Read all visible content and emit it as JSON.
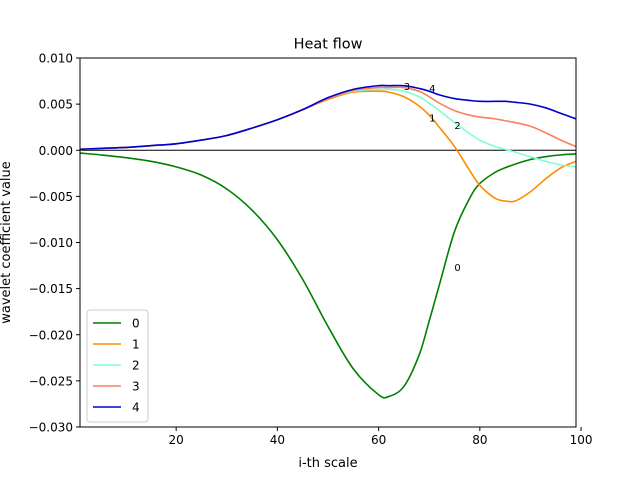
{
  "chart_data": {
    "type": "line",
    "title": "Heat flow",
    "xlabel": "i-th scale",
    "ylabel": "wavelet coefficient value",
    "xlim": [
      1,
      99
    ],
    "ylim": [
      -0.03,
      0.01
    ],
    "xticks": [
      20,
      40,
      60,
      80,
      100
    ],
    "xtick_labels": [
      "20",
      "40",
      "60",
      "80",
      "100"
    ],
    "yticks": [
      0.01,
      0.005,
      0.0,
      -0.005,
      -0.01,
      -0.015,
      -0.02,
      -0.025,
      -0.03
    ],
    "ytick_labels": [
      "0.010",
      "0.005",
      "0.000",
      "−0.005",
      "−0.010",
      "−0.015",
      "−0.020",
      "−0.025",
      "−0.030"
    ],
    "grid": false,
    "zero_line": true,
    "legend_position": "lower-left",
    "x": [
      1,
      5,
      10,
      15,
      20,
      25,
      30,
      35,
      40,
      45,
      50,
      55,
      60,
      62,
      65,
      68,
      70,
      72,
      75,
      78,
      80,
      83,
      85,
      87,
      90,
      93,
      96,
      99
    ],
    "series": [
      {
        "name": "0",
        "color": "#008000",
        "values": [
          -0.0003,
          -0.0005,
          -0.0008,
          -0.0012,
          -0.0018,
          -0.0027,
          -0.0042,
          -0.0065,
          -0.0097,
          -0.014,
          -0.0191,
          -0.0237,
          -0.0265,
          -0.0267,
          -0.0256,
          -0.0222,
          -0.0185,
          -0.0146,
          -0.0088,
          -0.0052,
          -0.0036,
          -0.0024,
          -0.0019,
          -0.0015,
          -0.001,
          -0.0007,
          -0.0005,
          -0.0004
        ]
      },
      {
        "name": "1",
        "color": "#ff8c00",
        "values": [
          0.0001,
          0.0002,
          0.0003,
          0.0005,
          0.0007,
          0.0011,
          0.0016,
          0.0024,
          0.0033,
          0.0044,
          0.0055,
          0.0063,
          0.0064,
          0.0063,
          0.0058,
          0.0048,
          0.0038,
          0.0025,
          0.0004,
          -0.0022,
          -0.0038,
          -0.0052,
          -0.0055,
          -0.0055,
          -0.0045,
          -0.0031,
          -0.0019,
          -0.0012
        ]
      },
      {
        "name": "2",
        "color": "#7fffd4",
        "values": [
          0.0001,
          0.0002,
          0.0003,
          0.0005,
          0.0007,
          0.0011,
          0.0016,
          0.0024,
          0.0033,
          0.0044,
          0.0056,
          0.0064,
          0.0066,
          0.0066,
          0.0064,
          0.0058,
          0.0051,
          0.0043,
          0.003,
          0.0018,
          0.0011,
          0.0004,
          0.0001,
          -0.0002,
          -0.0007,
          -0.0012,
          -0.0016,
          -0.0018
        ]
      },
      {
        "name": "3",
        "color": "#fa8060",
        "values": [
          0.0001,
          0.0002,
          0.0003,
          0.0005,
          0.0007,
          0.0011,
          0.0016,
          0.0024,
          0.0033,
          0.0044,
          0.0056,
          0.0065,
          0.0068,
          0.0068,
          0.0068,
          0.0064,
          0.0058,
          0.0051,
          0.0043,
          0.0038,
          0.0036,
          0.0034,
          0.0032,
          0.003,
          0.0026,
          0.0019,
          0.0011,
          0.0004
        ]
      },
      {
        "name": "4",
        "color": "#0000cd",
        "values": [
          0.0001,
          0.0002,
          0.0003,
          0.0005,
          0.0007,
          0.0011,
          0.0016,
          0.0024,
          0.0033,
          0.0044,
          0.0057,
          0.0066,
          0.007,
          0.007,
          0.007,
          0.0067,
          0.0064,
          0.006,
          0.0056,
          0.0054,
          0.0053,
          0.0053,
          0.0053,
          0.0052,
          0.005,
          0.0046,
          0.004,
          0.0034
        ]
      }
    ],
    "annotations": [
      {
        "text": "3",
        "x": 65.6,
        "y": 0.0069
      },
      {
        "text": "4",
        "x": 70.6,
        "y": 0.0067
      },
      {
        "text": "1",
        "x": 70.6,
        "y": 0.0035
      },
      {
        "text": "2",
        "x": 75.6,
        "y": 0.0027
      },
      {
        "text": "0",
        "x": 75.6,
        "y": -0.0127
      }
    ]
  }
}
